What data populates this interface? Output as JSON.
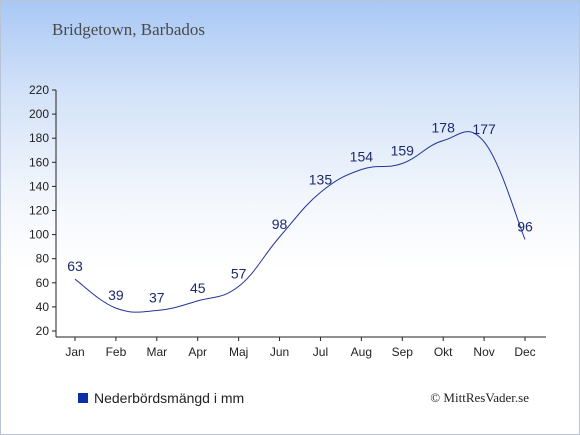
{
  "header": {
    "title": "Bridgetown, Barbados"
  },
  "legend": {
    "label": "Nederbördsmängd i mm"
  },
  "footer": {
    "copyright": "© MittResVader.se"
  },
  "colors": {
    "line": "#23349a",
    "legend_swatch": "#0b2fa8"
  },
  "chart_data": {
    "type": "line",
    "categories": [
      "Jan",
      "Feb",
      "Mar",
      "Apr",
      "Maj",
      "Jun",
      "Jul",
      "Aug",
      "Sep",
      "Okt",
      "Nov",
      "Dec"
    ],
    "series": [
      {
        "values": [
          63,
          39,
          37,
          45,
          57,
          98,
          135,
          154,
          159,
          178,
          177,
          96
        ]
      }
    ],
    "y_ticks": [
      20,
      40,
      60,
      80,
      100,
      120,
      140,
      160,
      180,
      200,
      220
    ],
    "ylim": [
      20,
      220
    ],
    "title": "",
    "xlabel": "",
    "ylabel": "",
    "grid": false,
    "legend_position": "bottom-left"
  }
}
